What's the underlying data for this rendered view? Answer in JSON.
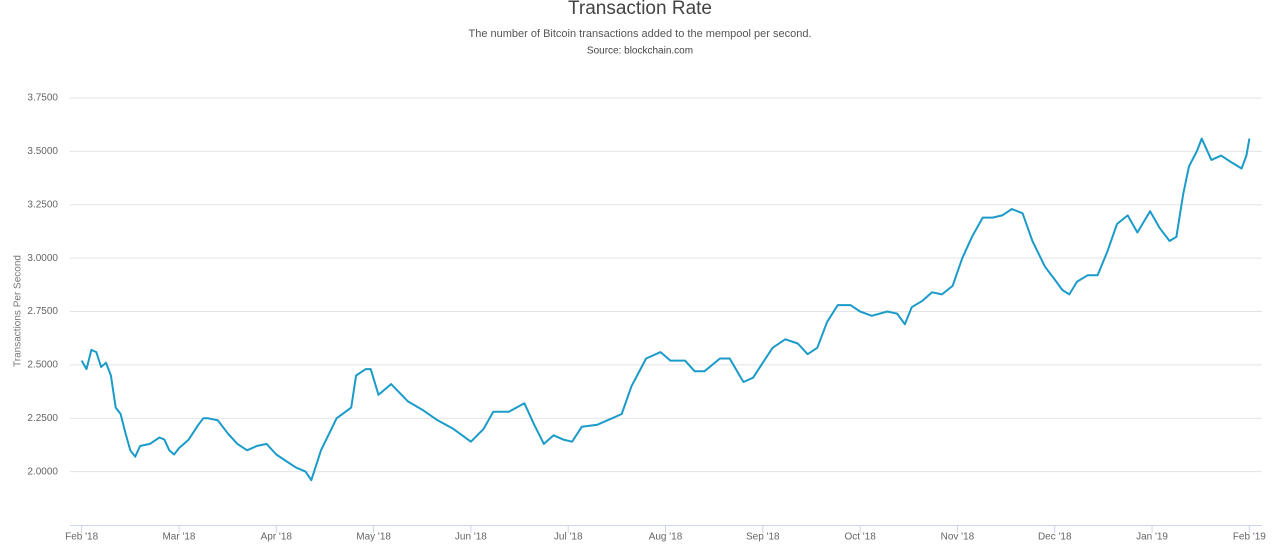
{
  "chart_data": {
    "type": "line",
    "title": "Transaction Rate",
    "subtitle": "The number of Bitcoin transactions added to the mempool per second.",
    "source": "Source: blockchain.com",
    "y_label": "Transactions Per Second",
    "grid": true,
    "xlim": [
      -0.12,
      12.13
    ],
    "ylim": [
      1.75,
      3.75
    ],
    "xticks": [
      {
        "value": 0,
        "label": "Feb '18"
      },
      {
        "value": 1,
        "label": "Mar '18"
      },
      {
        "value": 2,
        "label": "Apr '18"
      },
      {
        "value": 3,
        "label": "May '18"
      },
      {
        "value": 4,
        "label": "Jun '18"
      },
      {
        "value": 5,
        "label": "Jul '18"
      },
      {
        "value": 6,
        "label": "Aug '18"
      },
      {
        "value": 7,
        "label": "Sep '18"
      },
      {
        "value": 8,
        "label": "Oct '18"
      },
      {
        "value": 9,
        "label": "Nov '18"
      },
      {
        "value": 10,
        "label": "Dec '18"
      },
      {
        "value": 11,
        "label": "Jan '19"
      },
      {
        "value": 12,
        "label": "Feb '19"
      }
    ],
    "yticks": [
      {
        "value": 2.0,
        "label": "2.0000"
      },
      {
        "value": 2.25,
        "label": "2.2500"
      },
      {
        "value": 2.5,
        "label": "2.5000"
      },
      {
        "value": 2.75,
        "label": "2.7500"
      },
      {
        "value": 3.0,
        "label": "3.0000"
      },
      {
        "value": 3.25,
        "label": "3.2500"
      },
      {
        "value": 3.5,
        "label": "3.5000"
      },
      {
        "value": 3.75,
        "label": "3.7500"
      }
    ],
    "x": [
      0,
      0.05,
      0.1,
      0.15,
      0.2,
      0.25,
      0.3,
      0.35,
      0.4,
      0.45,
      0.5,
      0.55,
      0.6,
      0.7,
      0.8,
      0.85,
      0.9,
      0.95,
      1.0,
      1.1,
      1.2,
      1.25,
      1.3,
      1.4,
      1.5,
      1.6,
      1.7,
      1.8,
      1.9,
      2.0,
      2.1,
      2.2,
      2.3,
      2.36,
      2.46,
      2.62,
      2.77,
      2.82,
      2.92,
      2.97,
      3.05,
      3.18,
      3.35,
      3.5,
      3.66,
      3.82,
      4.0,
      4.13,
      4.23,
      4.39,
      4.55,
      4.65,
      4.75,
      4.85,
      4.95,
      5.04,
      5.14,
      5.3,
      5.45,
      5.55,
      5.65,
      5.8,
      5.95,
      6.05,
      6.2,
      6.3,
      6.4,
      6.56,
      6.66,
      6.8,
      6.9,
      7.0,
      7.1,
      7.23,
      7.36,
      7.46,
      7.56,
      7.66,
      7.77,
      7.9,
      8.0,
      8.12,
      8.28,
      8.38,
      8.46,
      8.53,
      8.64,
      8.74,
      8.84,
      8.95,
      9.05,
      9.15,
      9.26,
      9.36,
      9.46,
      9.56,
      9.67,
      9.77,
      9.9,
      10.0,
      10.08,
      10.15,
      10.23,
      10.34,
      10.44,
      10.54,
      10.64,
      10.75,
      10.85,
      10.98,
      11.08,
      11.18,
      11.25,
      11.32,
      11.38,
      11.46,
      11.51,
      11.61,
      11.71,
      11.81,
      11.92,
      11.97,
      12.0
    ],
    "series": [
      {
        "name": "Transactions Per Second",
        "color": "#1b9bc9",
        "values": [
          2.52,
          2.48,
          2.57,
          2.56,
          2.49,
          2.51,
          2.45,
          2.3,
          2.27,
          2.18,
          2.1,
          2.07,
          2.12,
          2.13,
          2.16,
          2.15,
          2.1,
          2.08,
          2.11,
          2.15,
          2.22,
          2.25,
          2.25,
          2.24,
          2.18,
          2.13,
          2.1,
          2.12,
          2.13,
          2.08,
          2.05,
          2.02,
          2.0,
          1.96,
          2.1,
          2.25,
          2.3,
          2.45,
          2.48,
          2.48,
          2.36,
          2.41,
          2.33,
          2.29,
          2.24,
          2.2,
          2.14,
          2.2,
          2.28,
          2.28,
          2.32,
          2.22,
          2.13,
          2.17,
          2.15,
          2.14,
          2.21,
          2.22,
          2.25,
          2.27,
          2.4,
          2.53,
          2.56,
          2.52,
          2.52,
          2.47,
          2.47,
          2.53,
          2.53,
          2.42,
          2.44,
          2.51,
          2.58,
          2.62,
          2.6,
          2.55,
          2.58,
          2.7,
          2.78,
          2.78,
          2.75,
          2.73,
          2.75,
          2.74,
          2.69,
          2.77,
          2.8,
          2.84,
          2.83,
          2.87,
          3.0,
          3.1,
          3.19,
          3.19,
          3.2,
          3.23,
          3.21,
          3.08,
          2.96,
          2.9,
          2.85,
          2.83,
          2.89,
          2.92,
          2.92,
          3.03,
          3.16,
          3.2,
          3.12,
          3.22,
          3.14,
          3.08,
          3.1,
          3.3,
          3.43,
          3.5,
          3.56,
          3.46,
          3.48,
          3.45,
          3.42,
          3.48,
          3.56
        ]
      }
    ]
  }
}
